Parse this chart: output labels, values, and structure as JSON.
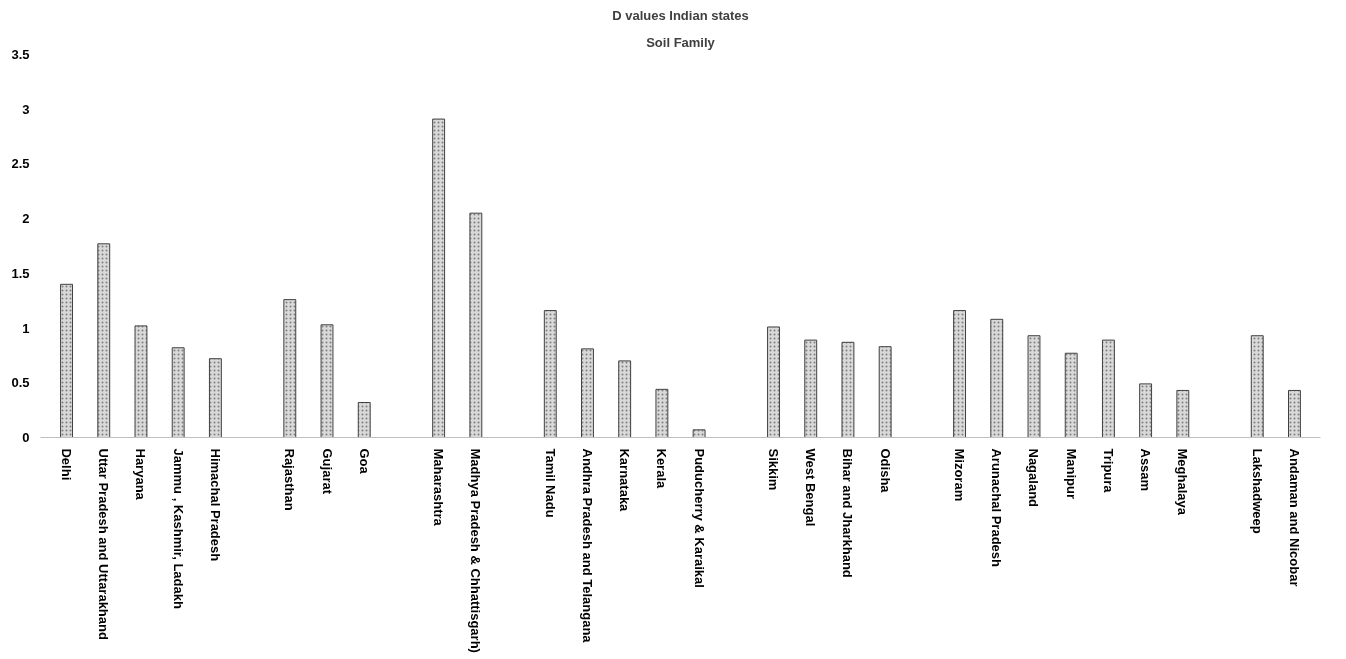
{
  "chart_data": {
    "type": "bar",
    "title": "D values Indian states",
    "subtitle": "Soil Family",
    "categories": [
      "Delhi",
      "Uttar Pradesh and Uttarakhand",
      "Haryana",
      "Jammu , Kashmir, Ladakh",
      "Himachal Pradesh",
      null,
      "Rajasthan",
      "Gujarat",
      "Goa",
      null,
      "Maharashtra",
      "Madhya Pradesh & Chhattisgarh)",
      null,
      "Tamil Nadu",
      "Andhra Pradesh and Telangana",
      "Karnataka",
      "Kerala",
      "Puducherry & Karaikal",
      null,
      "Sikkim",
      "West Bengal",
      "Bihar and Jharkhand",
      "Odisha",
      null,
      "Mizoram",
      "Arunachal Pradesh",
      "Nagaland",
      "Manipur",
      "Tripura",
      "Assam",
      "Meghalaya",
      null,
      "Lakshadweep",
      "Andaman and Nicobar"
    ],
    "values": [
      1.4,
      1.77,
      1.02,
      0.82,
      0.72,
      null,
      1.26,
      1.03,
      0.32,
      null,
      2.91,
      2.05,
      null,
      1.16,
      0.81,
      0.7,
      0.44,
      0.07,
      null,
      1.01,
      0.89,
      0.87,
      0.83,
      null,
      1.16,
      1.08,
      0.93,
      0.77,
      0.89,
      0.49,
      0.43,
      null,
      0.93,
      0.43
    ],
    "color": "#d9d9d9",
    "ylim": [
      0,
      3.5
    ],
    "yticks": [
      0,
      0.5,
      1,
      1.5,
      2,
      2.5,
      3,
      3.5
    ],
    "grid": false
  }
}
